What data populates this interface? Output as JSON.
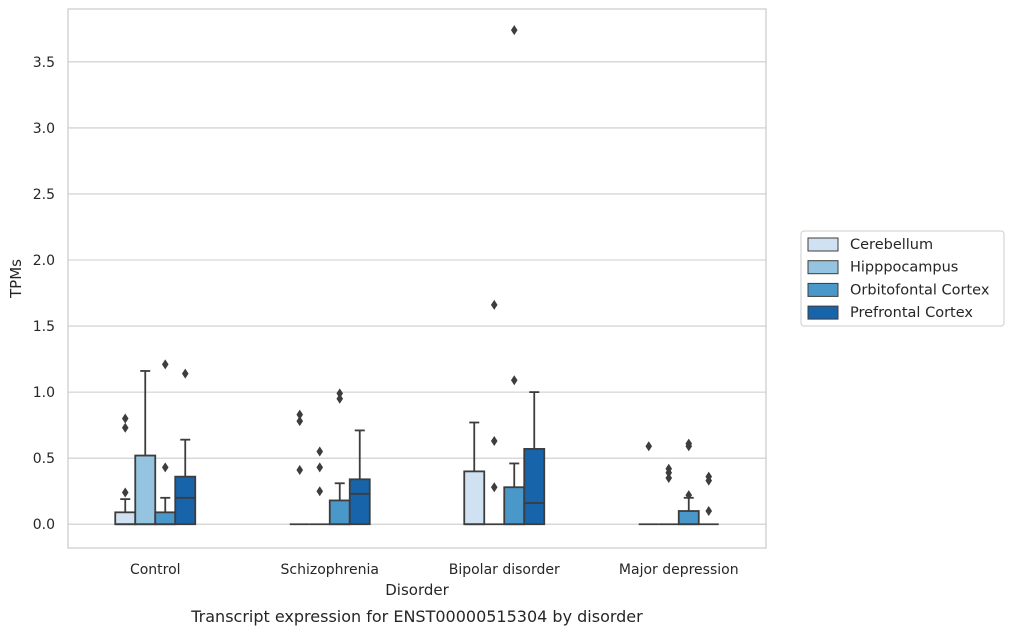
{
  "chart_data": {
    "type": "box",
    "title": "",
    "caption": "Transcript expression for ENST00000515304 by disorder",
    "xlabel": "Disorder",
    "ylabel": "TPMs",
    "ylim": [
      -0.18,
      3.9
    ],
    "yticks": [
      "0.0",
      "0.5",
      "1.0",
      "1.5",
      "2.0",
      "2.5",
      "3.0",
      "3.5"
    ],
    "grid": "horizontal",
    "legend_position": "right-center",
    "categories": [
      "Control",
      "Schizophrenia",
      "Bipolar disorder",
      "Major depression"
    ],
    "series": [
      {
        "name": "Cerebellum",
        "color": "#d0e1f2",
        "boxes": [
          {
            "q1": 0.0,
            "median": 0.0,
            "q3": 0.09,
            "whisker_low": 0.0,
            "whisker_high": 0.19,
            "outliers": [
              0.24,
              0.73,
              0.8
            ]
          },
          {
            "q1": 0.0,
            "median": 0.0,
            "q3": 0.0,
            "whisker_low": 0.0,
            "whisker_high": 0.0,
            "outliers": [
              0.41,
              0.78,
              0.83
            ]
          },
          {
            "q1": 0.0,
            "median": 0.0,
            "q3": 0.4,
            "whisker_low": 0.0,
            "whisker_high": 0.77,
            "outliers": []
          },
          {
            "q1": 0.0,
            "median": 0.0,
            "q3": 0.0,
            "whisker_low": 0.0,
            "whisker_high": 0.0,
            "outliers": [
              0.59
            ]
          }
        ]
      },
      {
        "name": "Hipppocampus",
        "color": "#94c4df",
        "boxes": [
          {
            "q1": 0.0,
            "median": 0.0,
            "q3": 0.52,
            "whisker_low": 0.0,
            "whisker_high": 1.16,
            "outliers": []
          },
          {
            "q1": 0.0,
            "median": 0.0,
            "q3": 0.0,
            "whisker_low": 0.0,
            "whisker_high": 0.0,
            "outliers": [
              0.25,
              0.43,
              0.55
            ]
          },
          {
            "q1": 0.0,
            "median": 0.0,
            "q3": 0.0,
            "whisker_low": 0.0,
            "whisker_high": 0.0,
            "outliers": [
              0.28,
              0.63,
              1.66
            ]
          },
          {
            "q1": 0.0,
            "median": 0.0,
            "q3": 0.0,
            "whisker_low": 0.0,
            "whisker_high": 0.0,
            "outliers": [
              0.35,
              0.39,
              0.42
            ]
          }
        ]
      },
      {
        "name": "Orbitofontal Cortex",
        "color": "#4a98c9",
        "boxes": [
          {
            "q1": 0.0,
            "median": 0.0,
            "q3": 0.09,
            "whisker_low": 0.0,
            "whisker_high": 0.2,
            "outliers": [
              0.43,
              1.21
            ]
          },
          {
            "q1": 0.0,
            "median": 0.0,
            "q3": 0.18,
            "whisker_low": 0.0,
            "whisker_high": 0.31,
            "outliers": [
              0.95,
              0.99
            ]
          },
          {
            "q1": 0.0,
            "median": 0.0,
            "q3": 0.28,
            "whisker_low": 0.0,
            "whisker_high": 0.46,
            "outliers": [
              1.09,
              3.74
            ]
          },
          {
            "q1": 0.0,
            "median": 0.0,
            "q3": 0.1,
            "whisker_low": 0.0,
            "whisker_high": 0.2,
            "outliers": [
              0.22,
              0.59,
              0.61
            ]
          }
        ]
      },
      {
        "name": "Prefrontal Cortex",
        "color": "#1764ab",
        "boxes": [
          {
            "q1": 0.0,
            "median": 0.2,
            "q3": 0.36,
            "whisker_low": 0.0,
            "whisker_high": 0.64,
            "outliers": [
              1.14
            ]
          },
          {
            "q1": 0.0,
            "median": 0.23,
            "q3": 0.34,
            "whisker_low": 0.0,
            "whisker_high": 0.71,
            "outliers": []
          },
          {
            "q1": 0.0,
            "median": 0.16,
            "q3": 0.57,
            "whisker_low": 0.0,
            "whisker_high": 1.0,
            "outliers": []
          },
          {
            "q1": 0.0,
            "median": 0.0,
            "q3": 0.0,
            "whisker_low": 0.0,
            "whisker_high": 0.0,
            "outliers": [
              0.1,
              0.33,
              0.36
            ]
          }
        ]
      }
    ]
  }
}
